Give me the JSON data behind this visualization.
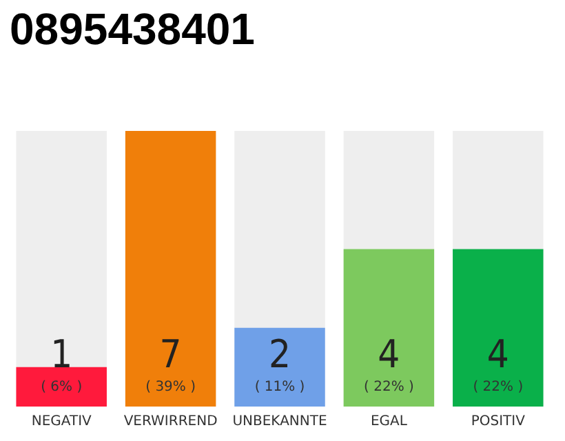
{
  "chart_data": {
    "type": "bar",
    "title": "0895438401",
    "categories": [
      "NEGATIV",
      "VERWIRREND",
      "UNBEKANNTE",
      "EGAL",
      "POSITIV"
    ],
    "values": [
      1,
      7,
      2,
      4,
      4
    ],
    "colors": [
      "#ff1a3c",
      "#f07f0a",
      "#6fa0e8",
      "#7dc95e",
      "#0ab04a"
    ],
    "data_labels": true,
    "annotations": [
      "( 6% )",
      "( 39% )",
      "( 11% )",
      "( 22% )",
      "( 22% )"
    ]
  }
}
